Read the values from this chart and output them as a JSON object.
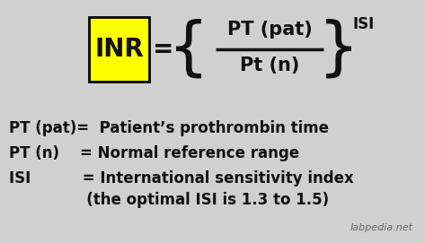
{
  "background_color": "#d0d0d0",
  "box_color": "#ffff00",
  "box_edge_color": "#000000",
  "text_color": "#111111",
  "watermark_color": "#666666",
  "inr_text": "INR",
  "equals": "=",
  "pt_pat": "PT (pat)",
  "pt_n": "Pt (n)",
  "isi_super": "ISI",
  "line1_a": "PT (pat)=",
  "line1_b": " Patient’s prothrombin time",
  "line2_a": "PT (n)   ",
  "line2_b": " = Normal reference range",
  "line3_a": "ISI       ",
  "line3_b": "   = International sensitivity index",
  "line4": "               (the optimal ISI is 1.3 to 1.5)",
  "watermark": "labpedia.net",
  "fig_width": 4.73,
  "fig_height": 2.71,
  "dpi": 100
}
